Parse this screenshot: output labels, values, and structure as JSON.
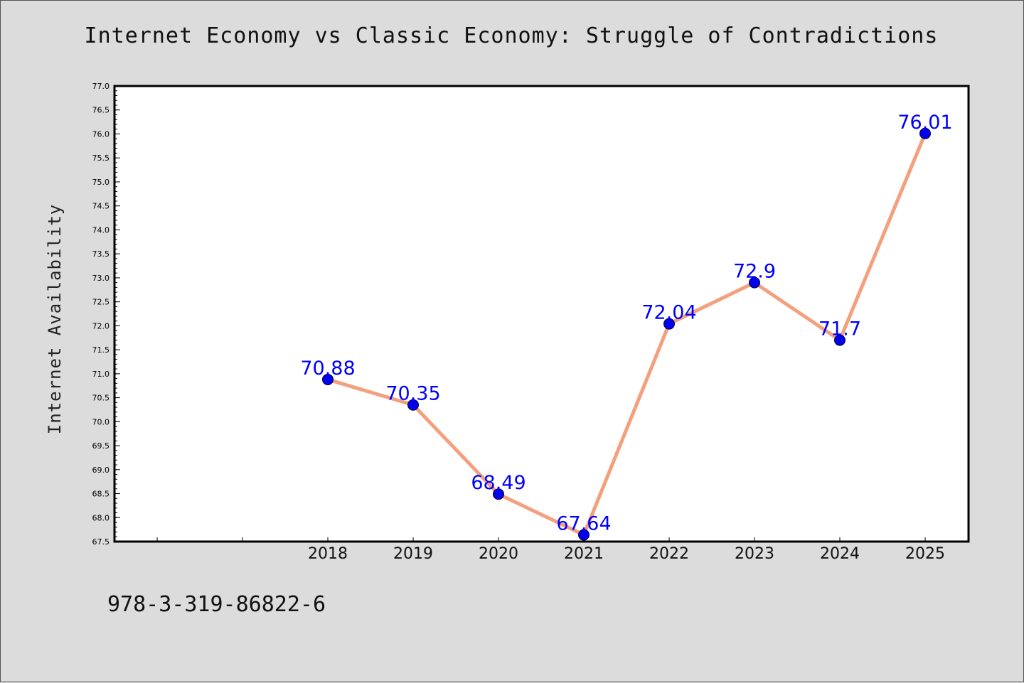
{
  "chart_data": {
    "type": "line",
    "title": "Internet Economy vs Classic Economy: Struggle of Contradictions",
    "xlabel": "",
    "ylabel": "Internet Availability",
    "categories": [
      "2018",
      "2019",
      "2020",
      "2021",
      "2022",
      "2023",
      "2024",
      "2025"
    ],
    "series": [
      {
        "values": [
          70.88,
          70.35,
          68.49,
          67.64,
          72.04,
          72.9,
          71.7,
          76.01
        ]
      }
    ],
    "ylim": [
      67.5,
      77.0
    ],
    "y_ticks": [
      "67.5",
      "68.0",
      "68.5",
      "69.0",
      "69.5",
      "70.0",
      "70.5",
      "71.0",
      "71.5",
      "72.0",
      "72.5",
      "73.0",
      "73.5",
      "74.0",
      "74.5",
      "75.0",
      "75.5",
      "76.0",
      "76.5",
      "77.0"
    ],
    "data_labels": [
      "70.88",
      "70.35",
      "68.49",
      "67.64",
      "72.04",
      "72.9",
      "71.7",
      "76.01"
    ],
    "grid": false,
    "line_color": "#f4a07e",
    "marker_color": "#0000ee",
    "label_color": "#0000ff"
  },
  "footnote": "978-3-319-86822-6"
}
